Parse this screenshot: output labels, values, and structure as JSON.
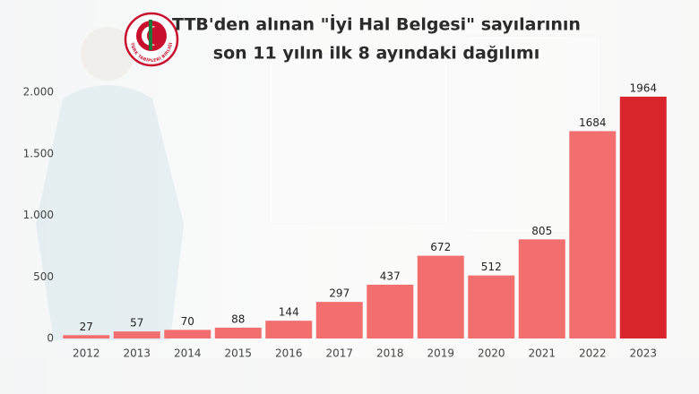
{
  "chart_data": {
    "type": "bar",
    "title": [
      "TTB'den alınan \"İyi Hal Belgesi\" sayılarının",
      "son 11 yılın ilk 8 ayındaki dağılımı"
    ],
    "logo_text": "TÜRK TABİPLERİ BİRLİĞİ",
    "categories": [
      "2012",
      "2013",
      "2014",
      "2015",
      "2016",
      "2017",
      "2018",
      "2019",
      "2020",
      "2021",
      "2022",
      "2023"
    ],
    "values": [
      27,
      57,
      70,
      88,
      144,
      297,
      437,
      672,
      512,
      805,
      1684,
      1964
    ],
    "colors": [
      "#f36f6f",
      "#f36f6f",
      "#f36f6f",
      "#f36f6f",
      "#f36f6f",
      "#f36f6f",
      "#f36f6f",
      "#f36f6f",
      "#f36f6f",
      "#f36f6f",
      "#f36f6f",
      "#d9252b"
    ],
    "ylim": [
      0,
      2000
    ],
    "yticks": [
      0,
      500,
      {
        "value": 1000,
        "label": "1.000"
      },
      {
        "value": 1500,
        "label": "1.500"
      },
      {
        "value": 2000,
        "label": "2.000"
      }
    ],
    "grid": false
  }
}
